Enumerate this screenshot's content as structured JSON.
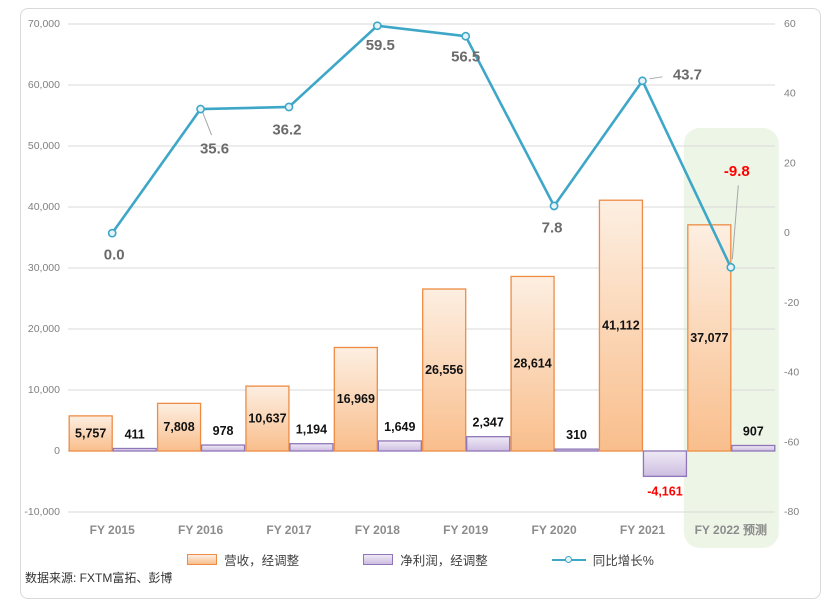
{
  "chart_data": {
    "type": "combo_bar_line",
    "title": "",
    "categories": [
      "FY 2015",
      "FY 2016",
      "FY 2017",
      "FY 2018",
      "FY 2019",
      "FY 2020",
      "FY 2021",
      "FY 2022 预测"
    ],
    "series": [
      {
        "name": "营收，经调整",
        "type": "bar",
        "axis": "left",
        "color": "#ed8c44",
        "values": [
          5757,
          7808,
          10637,
          16969,
          26556,
          28614,
          41112,
          37077
        ],
        "labels": [
          "5,757",
          "7,808",
          "10,637",
          "16,969",
          "26,556",
          "28,614",
          "41,112",
          "37,077"
        ]
      },
      {
        "name": "净利润，经调整",
        "type": "bar",
        "axis": "left",
        "color": "#8f76b8",
        "values": [
          411,
          978,
          1194,
          1649,
          2347,
          310,
          -4161,
          907
        ],
        "labels": [
          "411",
          "978",
          "1,194",
          "1,649",
          "2,347",
          "310",
          "-4,161",
          "907"
        ]
      },
      {
        "name": "同比增长%",
        "type": "line",
        "axis": "right",
        "color": "#3ea7c8",
        "values": [
          0.0,
          35.6,
          36.2,
          59.5,
          56.5,
          7.8,
          43.7,
          -9.8
        ],
        "labels": [
          "0.0",
          "35.6",
          "36.2",
          "59.5",
          "56.5",
          "7.8",
          "43.7",
          "-9.8"
        ]
      }
    ],
    "left_axis": {
      "min": -10000,
      "max": 70000,
      "step": 10000,
      "tick_labels": [
        "70,000",
        "60,000",
        "50,000",
        "40,000",
        "30,000",
        "20,000",
        "10,000",
        "0",
        "-10,000"
      ]
    },
    "right_axis": {
      "min": -80,
      "max": 60,
      "step": 20,
      "tick_labels": [
        "60",
        "40",
        "20",
        "0",
        "-20",
        "-40",
        "-60",
        "-80"
      ]
    },
    "grid": true,
    "legend_position": "bottom",
    "highlight": {
      "category": "FY 2022 预测",
      "color": "#edf5e7"
    },
    "negative_value_color": "#ff0000"
  },
  "legend": {
    "items": [
      {
        "label": "营收，经调整"
      },
      {
        "label": "净利润，经调整"
      },
      {
        "label": "同比增长%"
      }
    ]
  },
  "source": {
    "text": "数据来源: FXTM富拓、彭博"
  }
}
